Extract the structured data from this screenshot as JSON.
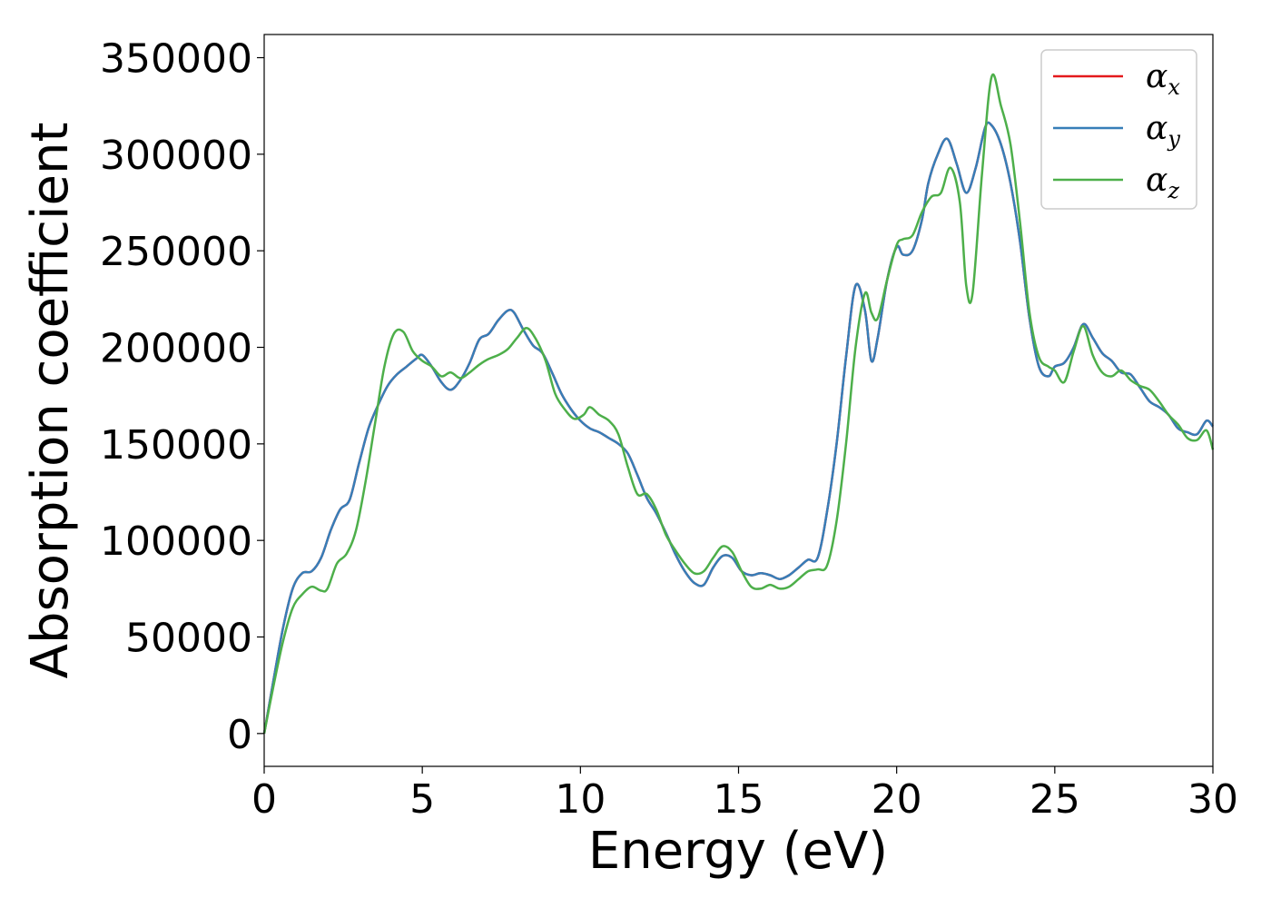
{
  "chart_data": {
    "type": "line",
    "title": "",
    "xlabel": "Energy (eV)",
    "ylabel": "Absorption coefficient",
    "xlim": [
      0,
      30
    ],
    "ylim": [
      -17000,
      362000
    ],
    "xticks": [
      0,
      5,
      10,
      15,
      20,
      25,
      30
    ],
    "xtick_labels": [
      "0",
      "5",
      "10",
      "15",
      "20",
      "25",
      "30"
    ],
    "yticks": [
      0,
      50000,
      100000,
      150000,
      200000,
      250000,
      300000,
      350000
    ],
    "ytick_labels": [
      "0",
      "50000",
      "100000",
      "150000",
      "200000",
      "250000",
      "300000",
      "350000"
    ],
    "grid": false,
    "legend_position": "top-right",
    "colors": {
      "alpha_x": "#e41a1c",
      "alpha_y": "#377eb8",
      "alpha_z": "#4daf4a"
    },
    "legend": [
      {
        "base": "α",
        "sub": "x",
        "color": "#e41a1c"
      },
      {
        "base": "α",
        "sub": "y",
        "color": "#377eb8"
      },
      {
        "base": "α",
        "sub": "z",
        "color": "#4daf4a"
      }
    ],
    "series": [
      {
        "key": "alpha_x",
        "color": "#e41a1c",
        "x": [
          0,
          0.3,
          0.6,
          0.9,
          1.2,
          1.5,
          1.8,
          2.1,
          2.4,
          2.7,
          3.0,
          3.3,
          3.6,
          3.9,
          4.2,
          4.5,
          4.8,
          5.0,
          5.3,
          5.6,
          5.9,
          6.2,
          6.5,
          6.8,
          7.1,
          7.4,
          7.7,
          7.9,
          8.2,
          8.5,
          8.8,
          9.1,
          9.4,
          9.7,
          10.0,
          10.3,
          10.6,
          10.9,
          11.2,
          11.5,
          11.8,
          12.1,
          12.4,
          12.7,
          13.0,
          13.3,
          13.6,
          13.9,
          14.2,
          14.5,
          14.8,
          15.1,
          15.4,
          15.7,
          16.0,
          16.3,
          16.6,
          16.9,
          17.2,
          17.5,
          17.8,
          18.1,
          18.4,
          18.7,
          19.0,
          19.2,
          19.4,
          19.7,
          20.0,
          20.2,
          20.5,
          20.8,
          21.0,
          21.3,
          21.6,
          21.9,
          22.2,
          22.5,
          22.8,
          23.0,
          23.3,
          23.6,
          23.9,
          24.2,
          24.5,
          24.8,
          25.0,
          25.3,
          25.6,
          25.9,
          26.2,
          26.5,
          26.8,
          27.1,
          27.4,
          27.7,
          28.0,
          28.3,
          28.6,
          28.9,
          29.2,
          29.5,
          29.8,
          30.0
        ],
        "y": [
          0,
          28000,
          55000,
          75000,
          83000,
          84000,
          91000,
          105000,
          116000,
          121000,
          140000,
          158000,
          170000,
          180000,
          186000,
          190000,
          194000,
          196000,
          190000,
          182000,
          178000,
          183000,
          192000,
          204000,
          207000,
          214000,
          219000,
          218000,
          209000,
          201000,
          197000,
          187000,
          176000,
          168000,
          162000,
          158000,
          156000,
          153000,
          150000,
          145000,
          134000,
          122000,
          114000,
          104000,
          93000,
          84000,
          78000,
          77000,
          86000,
          92000,
          91000,
          84000,
          82000,
          83000,
          82000,
          80000,
          82000,
          86000,
          90000,
          91000,
          115000,
          150000,
          195000,
          232000,
          219000,
          193000,
          205000,
          235000,
          252000,
          248000,
          250000,
          266000,
          285000,
          300000,
          308000,
          295000,
          280000,
          293000,
          314000,
          315000,
          305000,
          285000,
          255000,
          215000,
          190000,
          185000,
          190000,
          192000,
          200000,
          212000,
          205000,
          197000,
          193000,
          187000,
          186000,
          179000,
          172000,
          169000,
          165000,
          158000,
          156000,
          155000,
          162000,
          159000
        ]
      },
      {
        "key": "alpha_y",
        "color": "#377eb8",
        "x": [
          0,
          0.3,
          0.6,
          0.9,
          1.2,
          1.5,
          1.8,
          2.1,
          2.4,
          2.7,
          3.0,
          3.3,
          3.6,
          3.9,
          4.2,
          4.5,
          4.8,
          5.0,
          5.3,
          5.6,
          5.9,
          6.2,
          6.5,
          6.8,
          7.1,
          7.4,
          7.7,
          7.9,
          8.2,
          8.5,
          8.8,
          9.1,
          9.4,
          9.7,
          10.0,
          10.3,
          10.6,
          10.9,
          11.2,
          11.5,
          11.8,
          12.1,
          12.4,
          12.7,
          13.0,
          13.3,
          13.6,
          13.9,
          14.2,
          14.5,
          14.8,
          15.1,
          15.4,
          15.7,
          16.0,
          16.3,
          16.6,
          16.9,
          17.2,
          17.5,
          17.8,
          18.1,
          18.4,
          18.7,
          19.0,
          19.2,
          19.4,
          19.7,
          20.0,
          20.2,
          20.5,
          20.8,
          21.0,
          21.3,
          21.6,
          21.9,
          22.2,
          22.5,
          22.8,
          23.0,
          23.3,
          23.6,
          23.9,
          24.2,
          24.5,
          24.8,
          25.0,
          25.3,
          25.6,
          25.9,
          26.2,
          26.5,
          26.8,
          27.1,
          27.4,
          27.7,
          28.0,
          28.3,
          28.6,
          28.9,
          29.2,
          29.5,
          29.8,
          30.0
        ],
        "y": [
          0,
          28000,
          55000,
          75000,
          83000,
          84000,
          91000,
          105000,
          116000,
          121000,
          140000,
          158000,
          170000,
          180000,
          186000,
          190000,
          194000,
          196000,
          190000,
          182000,
          178000,
          183000,
          192000,
          204000,
          207000,
          214000,
          219000,
          218000,
          209000,
          201000,
          197000,
          187000,
          176000,
          168000,
          162000,
          158000,
          156000,
          153000,
          150000,
          145000,
          134000,
          122000,
          114000,
          104000,
          93000,
          84000,
          78000,
          77000,
          86000,
          92000,
          91000,
          84000,
          82000,
          83000,
          82000,
          80000,
          82000,
          86000,
          90000,
          91000,
          115000,
          150000,
          195000,
          232000,
          219000,
          193000,
          205000,
          235000,
          252000,
          248000,
          250000,
          266000,
          285000,
          300000,
          308000,
          295000,
          280000,
          293000,
          314000,
          315000,
          305000,
          285000,
          255000,
          215000,
          190000,
          185000,
          190000,
          192000,
          200000,
          212000,
          205000,
          197000,
          193000,
          187000,
          186000,
          179000,
          172000,
          169000,
          165000,
          158000,
          156000,
          155000,
          162000,
          159000
        ]
      },
      {
        "key": "alpha_z",
        "color": "#4daf4a",
        "x": [
          0,
          0.3,
          0.6,
          0.9,
          1.2,
          1.5,
          1.8,
          2.0,
          2.3,
          2.6,
          2.9,
          3.2,
          3.5,
          3.8,
          4.1,
          4.4,
          4.7,
          5.0,
          5.3,
          5.6,
          5.9,
          6.2,
          6.5,
          6.8,
          7.1,
          7.4,
          7.7,
          8.0,
          8.3,
          8.6,
          8.9,
          9.2,
          9.5,
          9.8,
          10.1,
          10.3,
          10.6,
          10.9,
          11.2,
          11.5,
          11.8,
          12.1,
          12.4,
          12.7,
          13.0,
          13.3,
          13.6,
          13.9,
          14.2,
          14.5,
          14.8,
          15.1,
          15.4,
          15.7,
          16.0,
          16.3,
          16.6,
          16.9,
          17.2,
          17.5,
          17.8,
          18.1,
          18.4,
          18.7,
          19.0,
          19.2,
          19.4,
          19.7,
          20.0,
          20.2,
          20.5,
          20.8,
          21.1,
          21.4,
          21.7,
          22.0,
          22.2,
          22.4,
          22.7,
          23.0,
          23.3,
          23.6,
          23.9,
          24.2,
          24.5,
          24.8,
          25.0,
          25.3,
          25.6,
          25.9,
          26.2,
          26.5,
          26.8,
          27.1,
          27.4,
          27.7,
          28.0,
          28.3,
          28.6,
          28.9,
          29.2,
          29.5,
          29.8,
          30.0
        ],
        "y": [
          0,
          25000,
          48000,
          65000,
          72000,
          76000,
          74000,
          75000,
          88000,
          93000,
          105000,
          130000,
          160000,
          190000,
          207000,
          208000,
          198000,
          193000,
          190000,
          185000,
          187000,
          184000,
          187000,
          191000,
          194000,
          196000,
          199000,
          205000,
          210000,
          204000,
          193000,
          176000,
          168000,
          163000,
          165000,
          169000,
          165000,
          162000,
          155000,
          138000,
          124000,
          124000,
          116000,
          103000,
          95000,
          88000,
          83000,
          84000,
          91000,
          97000,
          94000,
          84000,
          76000,
          75000,
          77000,
          75000,
          76000,
          80000,
          84000,
          85000,
          87000,
          110000,
          150000,
          200000,
          228000,
          218000,
          215000,
          235000,
          253000,
          256000,
          258000,
          270000,
          278000,
          280000,
          293000,
          275000,
          232000,
          228000,
          290000,
          340000,
          325000,
          305000,
          265000,
          218000,
          195000,
          190000,
          188000,
          182000,
          198000,
          211000,
          196000,
          187000,
          185000,
          188000,
          183000,
          180000,
          178000,
          172000,
          165000,
          160000,
          153000,
          152000,
          157000,
          147000
        ]
      }
    ]
  }
}
